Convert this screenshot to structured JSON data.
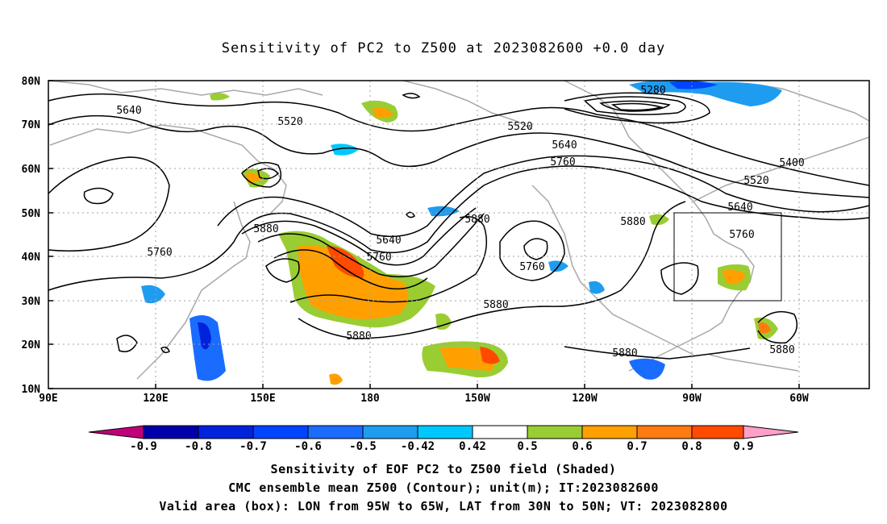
{
  "title": "Sensitivity of PC2 to Z500 at 2023082600 +0.0 day",
  "map": {
    "lat_labels": [
      "80N",
      "70N",
      "60N",
      "50N",
      "40N",
      "30N",
      "20N",
      "10N"
    ],
    "lon_labels": [
      "90E",
      "120E",
      "150E",
      "180",
      "150W",
      "120W",
      "90W",
      "60W"
    ],
    "contour_labels": [
      "5640",
      "5520",
      "5280",
      "5520",
      "5640",
      "5760",
      "5400",
      "5520",
      "5640",
      "5760",
      "5880",
      "5880",
      "5640",
      "5760",
      "5880",
      "5760",
      "5760",
      "5880",
      "5880",
      "5880",
      "5880"
    ],
    "valid_box": {
      "lon_from": "95W",
      "lon_to": "65W",
      "lat_from": "30N",
      "lat_to": "50N"
    }
  },
  "colorbar": {
    "labels": [
      "-0.9",
      "-0.8",
      "-0.7",
      "-0.6",
      "-0.5",
      "-0.42",
      "0.42",
      "0.5",
      "0.6",
      "0.7",
      "0.8",
      "0.9"
    ],
    "colors": [
      "#0000aa",
      "#0022dd",
      "#0044ff",
      "#1a6cff",
      "#1e9cf0",
      "#00c8ff",
      "#ffffff",
      "#9acd32",
      "#ffa000",
      "#ff7a10",
      "#ff4a00",
      "#ff0000"
    ],
    "low_end_color": "#c0007a",
    "high_end_color": "#ffa0c8"
  },
  "footer": {
    "line1": "Sensitivity of EOF PC2 to Z500 field (Shaded)",
    "line2": "CMC ensemble mean Z500 (Contour); unit(m); IT:2023082600",
    "line3": "Valid area (box): LON from 95W to 65W, LAT from 30N to 50N; VT: 2023082800"
  }
}
